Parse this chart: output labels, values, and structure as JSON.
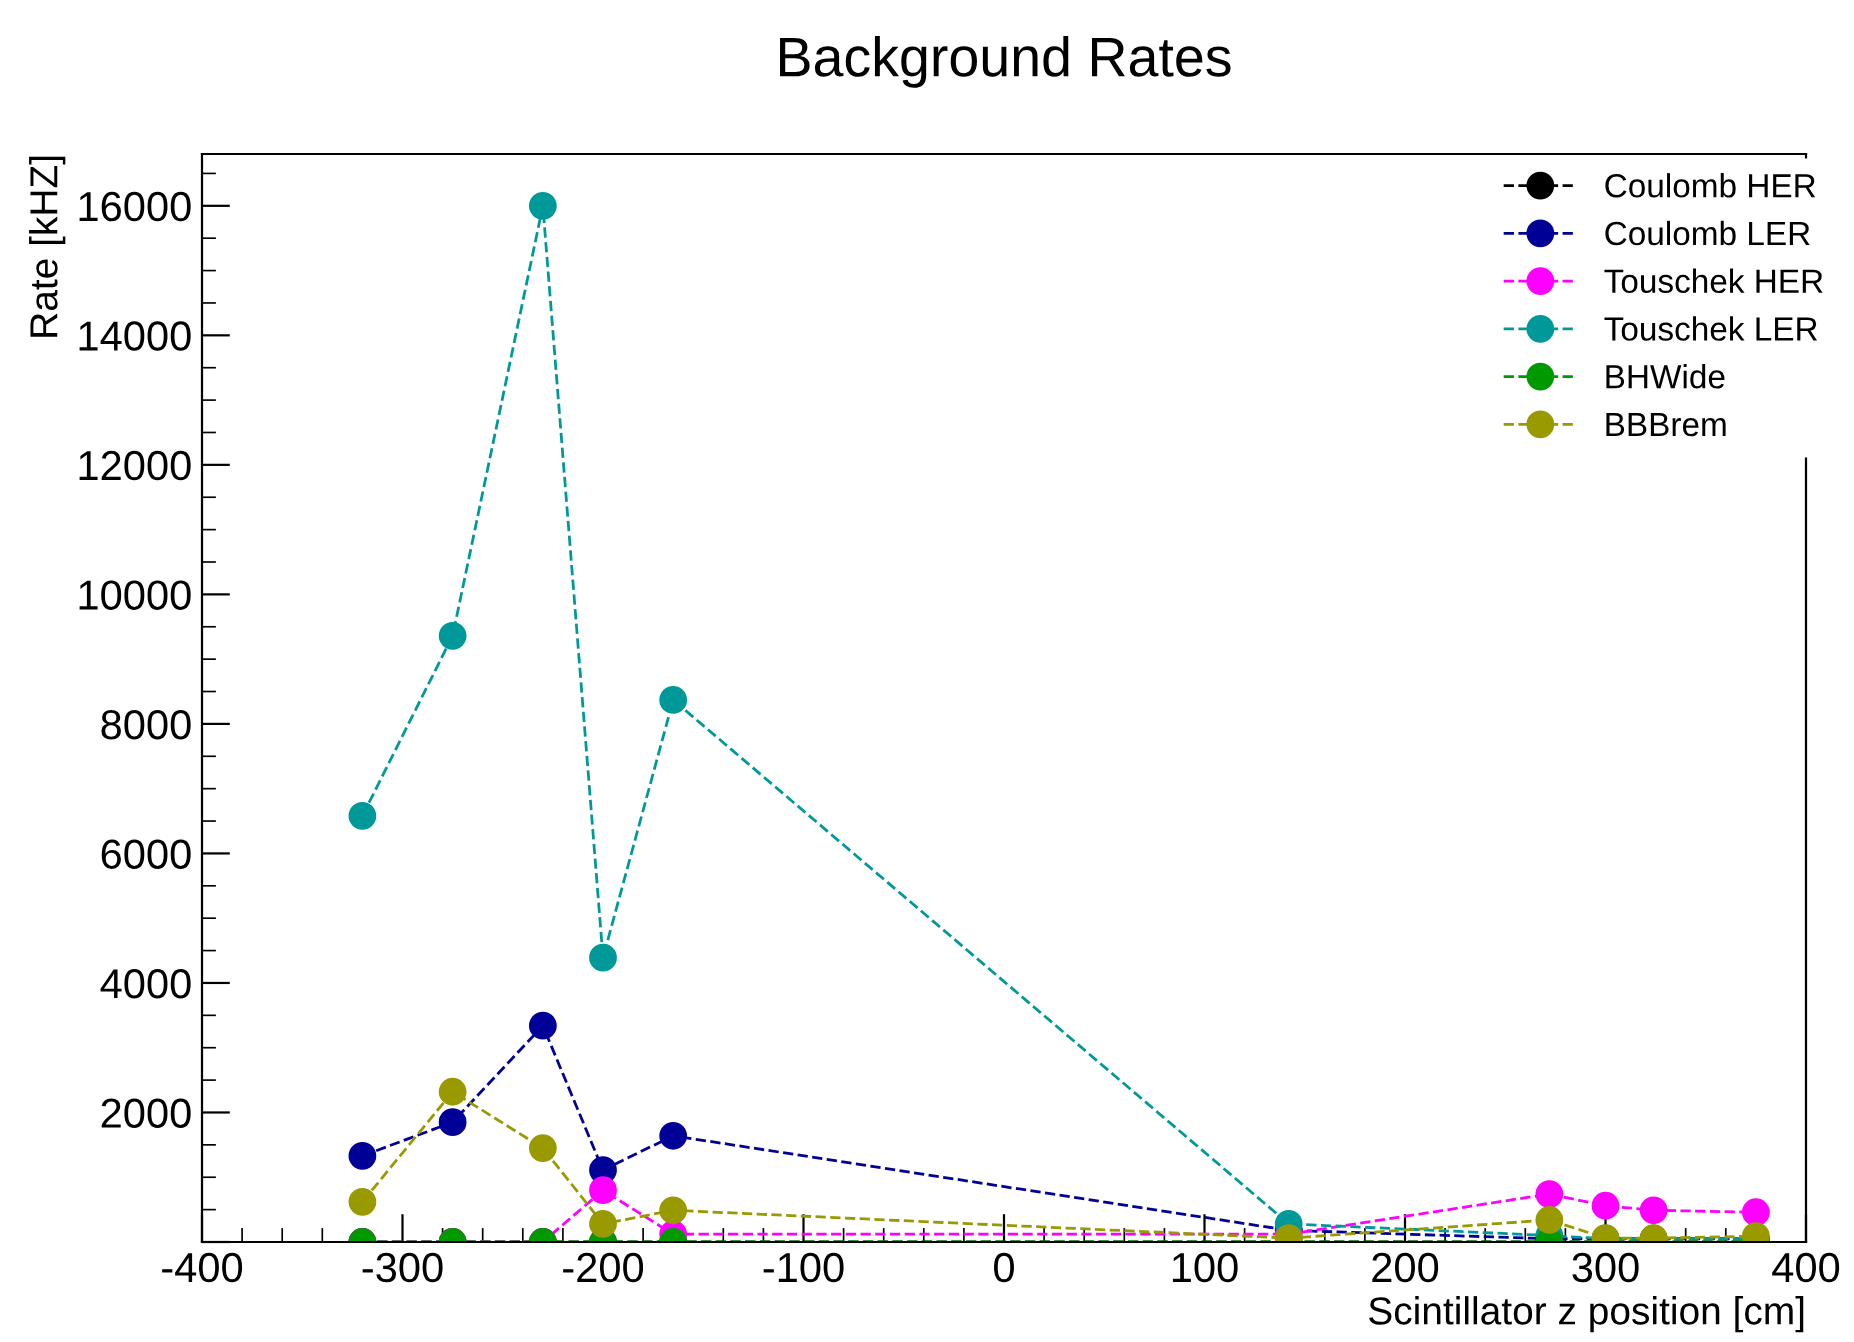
{
  "chart_data": {
    "type": "line",
    "title": "Background Rates",
    "xlabel": "Scintillator z position [cm]",
    "ylabel": "Rate [kHZ]",
    "x": [
      -320,
      -275,
      -230,
      -200,
      -165,
      142,
      272,
      300,
      324,
      375
    ],
    "series": [
      {
        "name": "Coulomb HER",
        "color": "#000000",
        "values": [
          0,
          0,
          0,
          0,
          0,
          0,
          0,
          0,
          0,
          0
        ]
      },
      {
        "name": "Coulomb LER",
        "color": "#000099",
        "values": [
          1330,
          1850,
          3340,
          1110,
          1640,
          180,
          50,
          50,
          50,
          50
        ]
      },
      {
        "name": "Touschek HER",
        "color": "#ff00ff",
        "values": [
          0,
          0,
          0,
          800,
          120,
          120,
          740,
          560,
          490,
          460
        ]
      },
      {
        "name": "Touschek LER",
        "color": "#009999",
        "values": [
          6580,
          9360,
          16000,
          4390,
          8370,
          280,
          100,
          50,
          50,
          50
        ]
      },
      {
        "name": "BHWide",
        "color": "#009900",
        "values": [
          0,
          0,
          0,
          0,
          0,
          0,
          0,
          0,
          0,
          0
        ]
      },
      {
        "name": "BBBrem",
        "color": "#999900",
        "values": [
          620,
          2320,
          1450,
          280,
          490,
          60,
          340,
          60,
          60,
          90
        ]
      }
    ],
    "xlim": [
      -400,
      400
    ],
    "xticks": [
      -400,
      -300,
      -200,
      -100,
      0,
      100,
      200,
      300,
      400
    ],
    "ylim": [
      0,
      16800
    ],
    "yticks": [
      {
        "value": 0,
        "label": null
      },
      2000,
      4000,
      6000,
      8000,
      10000,
      12000,
      14000,
      16000
    ],
    "grid": false,
    "legend": "top right",
    "marker": "circle",
    "line_style": "dashed"
  }
}
